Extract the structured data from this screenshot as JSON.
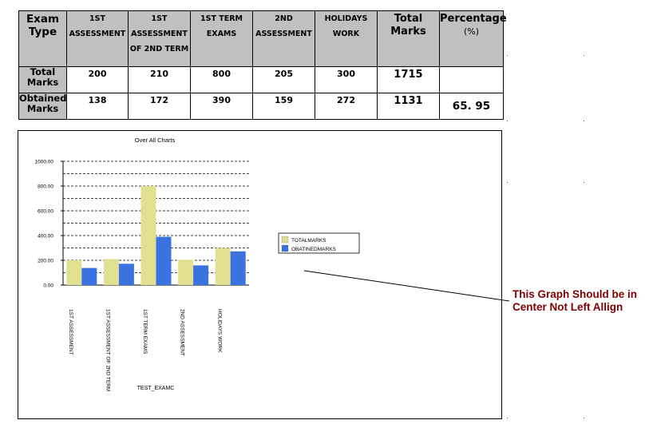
{
  "table": {
    "headers": {
      "exam_type": "Exam Type",
      "col1": [
        "1ST",
        "ASSESSMENT"
      ],
      "col2": [
        "1ST",
        "ASSESSMENT",
        "OF 2ND TERM"
      ],
      "col3": [
        "1ST TERM",
        "EXAMS"
      ],
      "col4": [
        "2ND",
        "ASSESSMENT"
      ],
      "col5": [
        "HOLIDAYS",
        "WORK"
      ],
      "total_marks": "Total Marks",
      "percentage": "Percentage",
      "percentage_unit": "(%)"
    },
    "rows": [
      {
        "label": "Total Marks",
        "values": [
          "200",
          "210",
          "800",
          "205",
          "300"
        ],
        "total": "1715",
        "percentage": ""
      },
      {
        "label": "Obtained Marks",
        "values": [
          "138",
          "172",
          "390",
          "159",
          "272"
        ],
        "total": "1131",
        "percentage": "65. 95"
      }
    ]
  },
  "chart_data": {
    "type": "bar",
    "title": "Over All Charts",
    "xlabel": "TEST_EXAMC",
    "ylabel": "",
    "ylim": [
      0,
      1000
    ],
    "yticks": [
      "0.00",
      "200.00",
      "400.00",
      "600.00",
      "800.00",
      "1000.00"
    ],
    "categories": [
      "1ST ASSESSMENT",
      "1ST ASSESSMENT OF 2ND TERM",
      "1ST TERM EXAMS",
      "2ND ASSESSMENT",
      "HOLIDAYS WORK"
    ],
    "series": [
      {
        "name": "TOTALMARKS",
        "values": [
          200,
          210,
          800,
          205,
          300
        ]
      },
      {
        "name": "OBATINEDMARKS",
        "values": [
          138,
          172,
          390,
          159,
          272
        ]
      }
    ],
    "colors": [
      "#e0e090",
      "#3a73e0"
    ],
    "grid": true,
    "legend": "right"
  },
  "annotation": {
    "text_line1": "This Graph Should be in",
    "text_line2": "Center Not Left Allign",
    "color": "#800000"
  }
}
